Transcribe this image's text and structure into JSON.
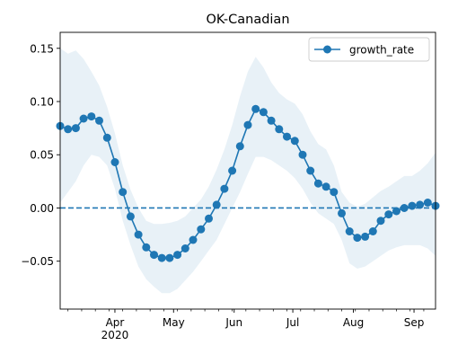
{
  "chart_data": {
    "type": "line",
    "title": "OK-Canadian",
    "xlabel": "",
    "ylabel": "",
    "x_range": [
      "2020-03-04",
      "2020-09-12"
    ],
    "ylim": [
      -0.095,
      0.165
    ],
    "grid": false,
    "legend": {
      "position": "top-right",
      "entries": [
        "growth_rate"
      ]
    },
    "x_ticks": [
      {
        "date": "2020-04-01",
        "label": "Apr",
        "sublabel": "2020"
      },
      {
        "date": "2020-05-01",
        "label": "May",
        "sublabel": ""
      },
      {
        "date": "2020-06-01",
        "label": "Jun",
        "sublabel": ""
      },
      {
        "date": "2020-07-01",
        "label": "Jul",
        "sublabel": ""
      },
      {
        "date": "2020-08-01",
        "label": "Aug",
        "sublabel": ""
      },
      {
        "date": "2020-09-01",
        "label": "Sep",
        "sublabel": ""
      }
    ],
    "y_ticks": [
      {
        "value": 0.15,
        "label": "0.15"
      },
      {
        "value": 0.1,
        "label": "0.10"
      },
      {
        "value": 0.05,
        "label": "0.05"
      },
      {
        "value": 0.0,
        "label": "0.00"
      },
      {
        "value": -0.05,
        "label": "−0.05"
      }
    ],
    "reference_line": {
      "y": 0,
      "style": "dashed"
    },
    "colors": {
      "line": "#1f77b4",
      "band": "#1f77b4"
    },
    "series": [
      {
        "name": "growth_rate",
        "x": [
          "2020-03-04",
          "2020-03-08",
          "2020-03-12",
          "2020-03-16",
          "2020-03-20",
          "2020-03-24",
          "2020-03-28",
          "2020-04-01",
          "2020-04-05",
          "2020-04-09",
          "2020-04-13",
          "2020-04-17",
          "2020-04-21",
          "2020-04-25",
          "2020-04-29",
          "2020-05-03",
          "2020-05-07",
          "2020-05-11",
          "2020-05-15",
          "2020-05-19",
          "2020-05-23",
          "2020-05-27",
          "2020-05-31",
          "2020-06-04",
          "2020-06-08",
          "2020-06-12",
          "2020-06-16",
          "2020-06-20",
          "2020-06-24",
          "2020-06-28",
          "2020-07-02",
          "2020-07-06",
          "2020-07-10",
          "2020-07-14",
          "2020-07-18",
          "2020-07-22",
          "2020-07-26",
          "2020-07-30",
          "2020-08-03",
          "2020-08-07",
          "2020-08-11",
          "2020-08-15",
          "2020-08-19",
          "2020-08-23",
          "2020-08-27",
          "2020-08-31",
          "2020-09-04",
          "2020-09-08",
          "2020-09-12"
        ],
        "y": [
          0.077,
          0.074,
          0.075,
          0.084,
          0.086,
          0.082,
          0.066,
          0.043,
          0.015,
          -0.008,
          -0.025,
          -0.037,
          -0.044,
          -0.047,
          -0.047,
          -0.044,
          -0.038,
          -0.03,
          -0.02,
          -0.01,
          0.003,
          0.018,
          0.035,
          0.058,
          0.078,
          0.093,
          0.09,
          0.082,
          0.074,
          0.067,
          0.063,
          0.05,
          0.035,
          0.023,
          0.02,
          0.015,
          -0.005,
          -0.022,
          -0.028,
          -0.027,
          -0.022,
          -0.012,
          -0.006,
          -0.003,
          0.0,
          0.002,
          0.003,
          0.005,
          0.002
        ],
        "upper": [
          0.15,
          0.145,
          0.148,
          0.14,
          0.128,
          0.115,
          0.095,
          0.07,
          0.04,
          0.017,
          0.0,
          -0.012,
          -0.015,
          -0.015,
          -0.014,
          -0.012,
          -0.008,
          0.0,
          0.008,
          0.02,
          0.036,
          0.055,
          0.078,
          0.105,
          0.128,
          0.142,
          0.132,
          0.118,
          0.108,
          0.102,
          0.098,
          0.088,
          0.072,
          0.06,
          0.055,
          0.04,
          0.015,
          0.005,
          0.001,
          0.004,
          0.01,
          0.016,
          0.02,
          0.025,
          0.03,
          0.03,
          0.035,
          0.042,
          0.052
        ],
        "lower": [
          0.005,
          0.015,
          0.025,
          0.04,
          0.05,
          0.048,
          0.04,
          0.018,
          -0.012,
          -0.035,
          -0.055,
          -0.067,
          -0.074,
          -0.08,
          -0.08,
          -0.076,
          -0.068,
          -0.06,
          -0.05,
          -0.04,
          -0.03,
          -0.015,
          0.0,
          0.015,
          0.032,
          0.048,
          0.048,
          0.045,
          0.04,
          0.035,
          0.028,
          0.018,
          0.005,
          -0.005,
          -0.01,
          -0.015,
          -0.03,
          -0.052,
          -0.057,
          -0.055,
          -0.05,
          -0.045,
          -0.04,
          -0.037,
          -0.035,
          -0.035,
          -0.035,
          -0.038,
          -0.045
        ]
      }
    ]
  }
}
